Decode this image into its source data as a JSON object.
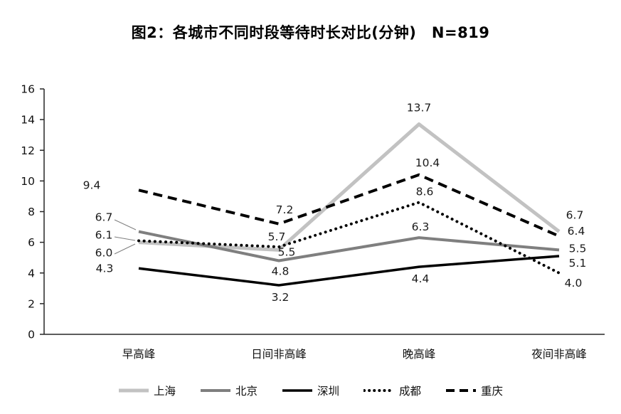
{
  "chart_data": {
    "type": "line",
    "title": "图2：各城市不同时段等待时长对比(分钟)　N=819",
    "categories": [
      "早高峰",
      "日间非高峰",
      "晚高峰",
      "夜间非高峰"
    ],
    "series": [
      {
        "name": "上海",
        "color": "#c2c2c2",
        "dash": "solid",
        "width": 5,
        "values": [
          6.0,
          5.5,
          13.7,
          6.7
        ]
      },
      {
        "name": "北京",
        "color": "#7f7f7f",
        "dash": "solid",
        "width": 4,
        "values": [
          6.7,
          4.8,
          6.3,
          5.5
        ]
      },
      {
        "name": "深圳",
        "color": "#000000",
        "dash": "solid",
        "width": 3.5,
        "values": [
          4.3,
          3.2,
          4.4,
          5.1
        ]
      },
      {
        "name": "成都",
        "color": "#000000",
        "dash": "dotted",
        "width": 4,
        "values": [
          6.1,
          5.7,
          8.6,
          4.0
        ]
      },
      {
        "name": "重庆",
        "color": "#000000",
        "dash": "dashed",
        "width": 4,
        "values": [
          9.4,
          7.2,
          10.4,
          6.4
        ]
      }
    ],
    "ylim": [
      0,
      16
    ],
    "ytick_step": 2,
    "grid": false,
    "legend_position": "bottom",
    "data_labels": true,
    "axis_color": "#262626",
    "label_color": "#1a1a1a"
  }
}
